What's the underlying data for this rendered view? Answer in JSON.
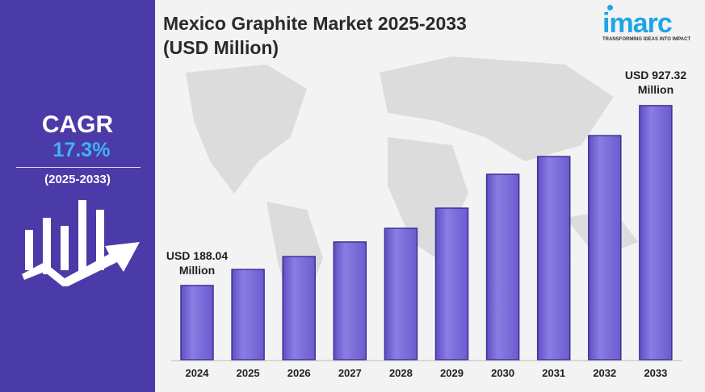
{
  "sidebar": {
    "cagr_label": "CAGR",
    "cagr_value": "17.3%",
    "period": "(2025-2033)"
  },
  "logo": {
    "text": "imarc",
    "tagline": "TRANSFORMING IDEAS INTO IMPACT"
  },
  "colors": {
    "sidebar": "#4b3ba9",
    "bar": "#7b6dd8",
    "cagr_value": "#3fb3f0",
    "brand": "#1ea5e8"
  },
  "chart_data": {
    "type": "bar",
    "title": "Mexico Graphite Market 2025-2033",
    "subtitle": "(USD Million)",
    "categories": [
      "2024",
      "2025",
      "2026",
      "2027",
      "2028",
      "2029",
      "2030",
      "2031",
      "2032",
      "2033"
    ],
    "values": [
      188.04,
      254,
      307,
      367,
      423,
      506,
      645,
      718,
      804,
      927.32
    ],
    "annotations": [
      {
        "category": "2024",
        "line1": "USD 188.04",
        "line2": "Million"
      },
      {
        "category": "2033",
        "line1": "USD 927.32",
        "line2": "Million"
      }
    ],
    "grid": false,
    "legend": "none",
    "xlabel": "",
    "ylabel": ""
  }
}
